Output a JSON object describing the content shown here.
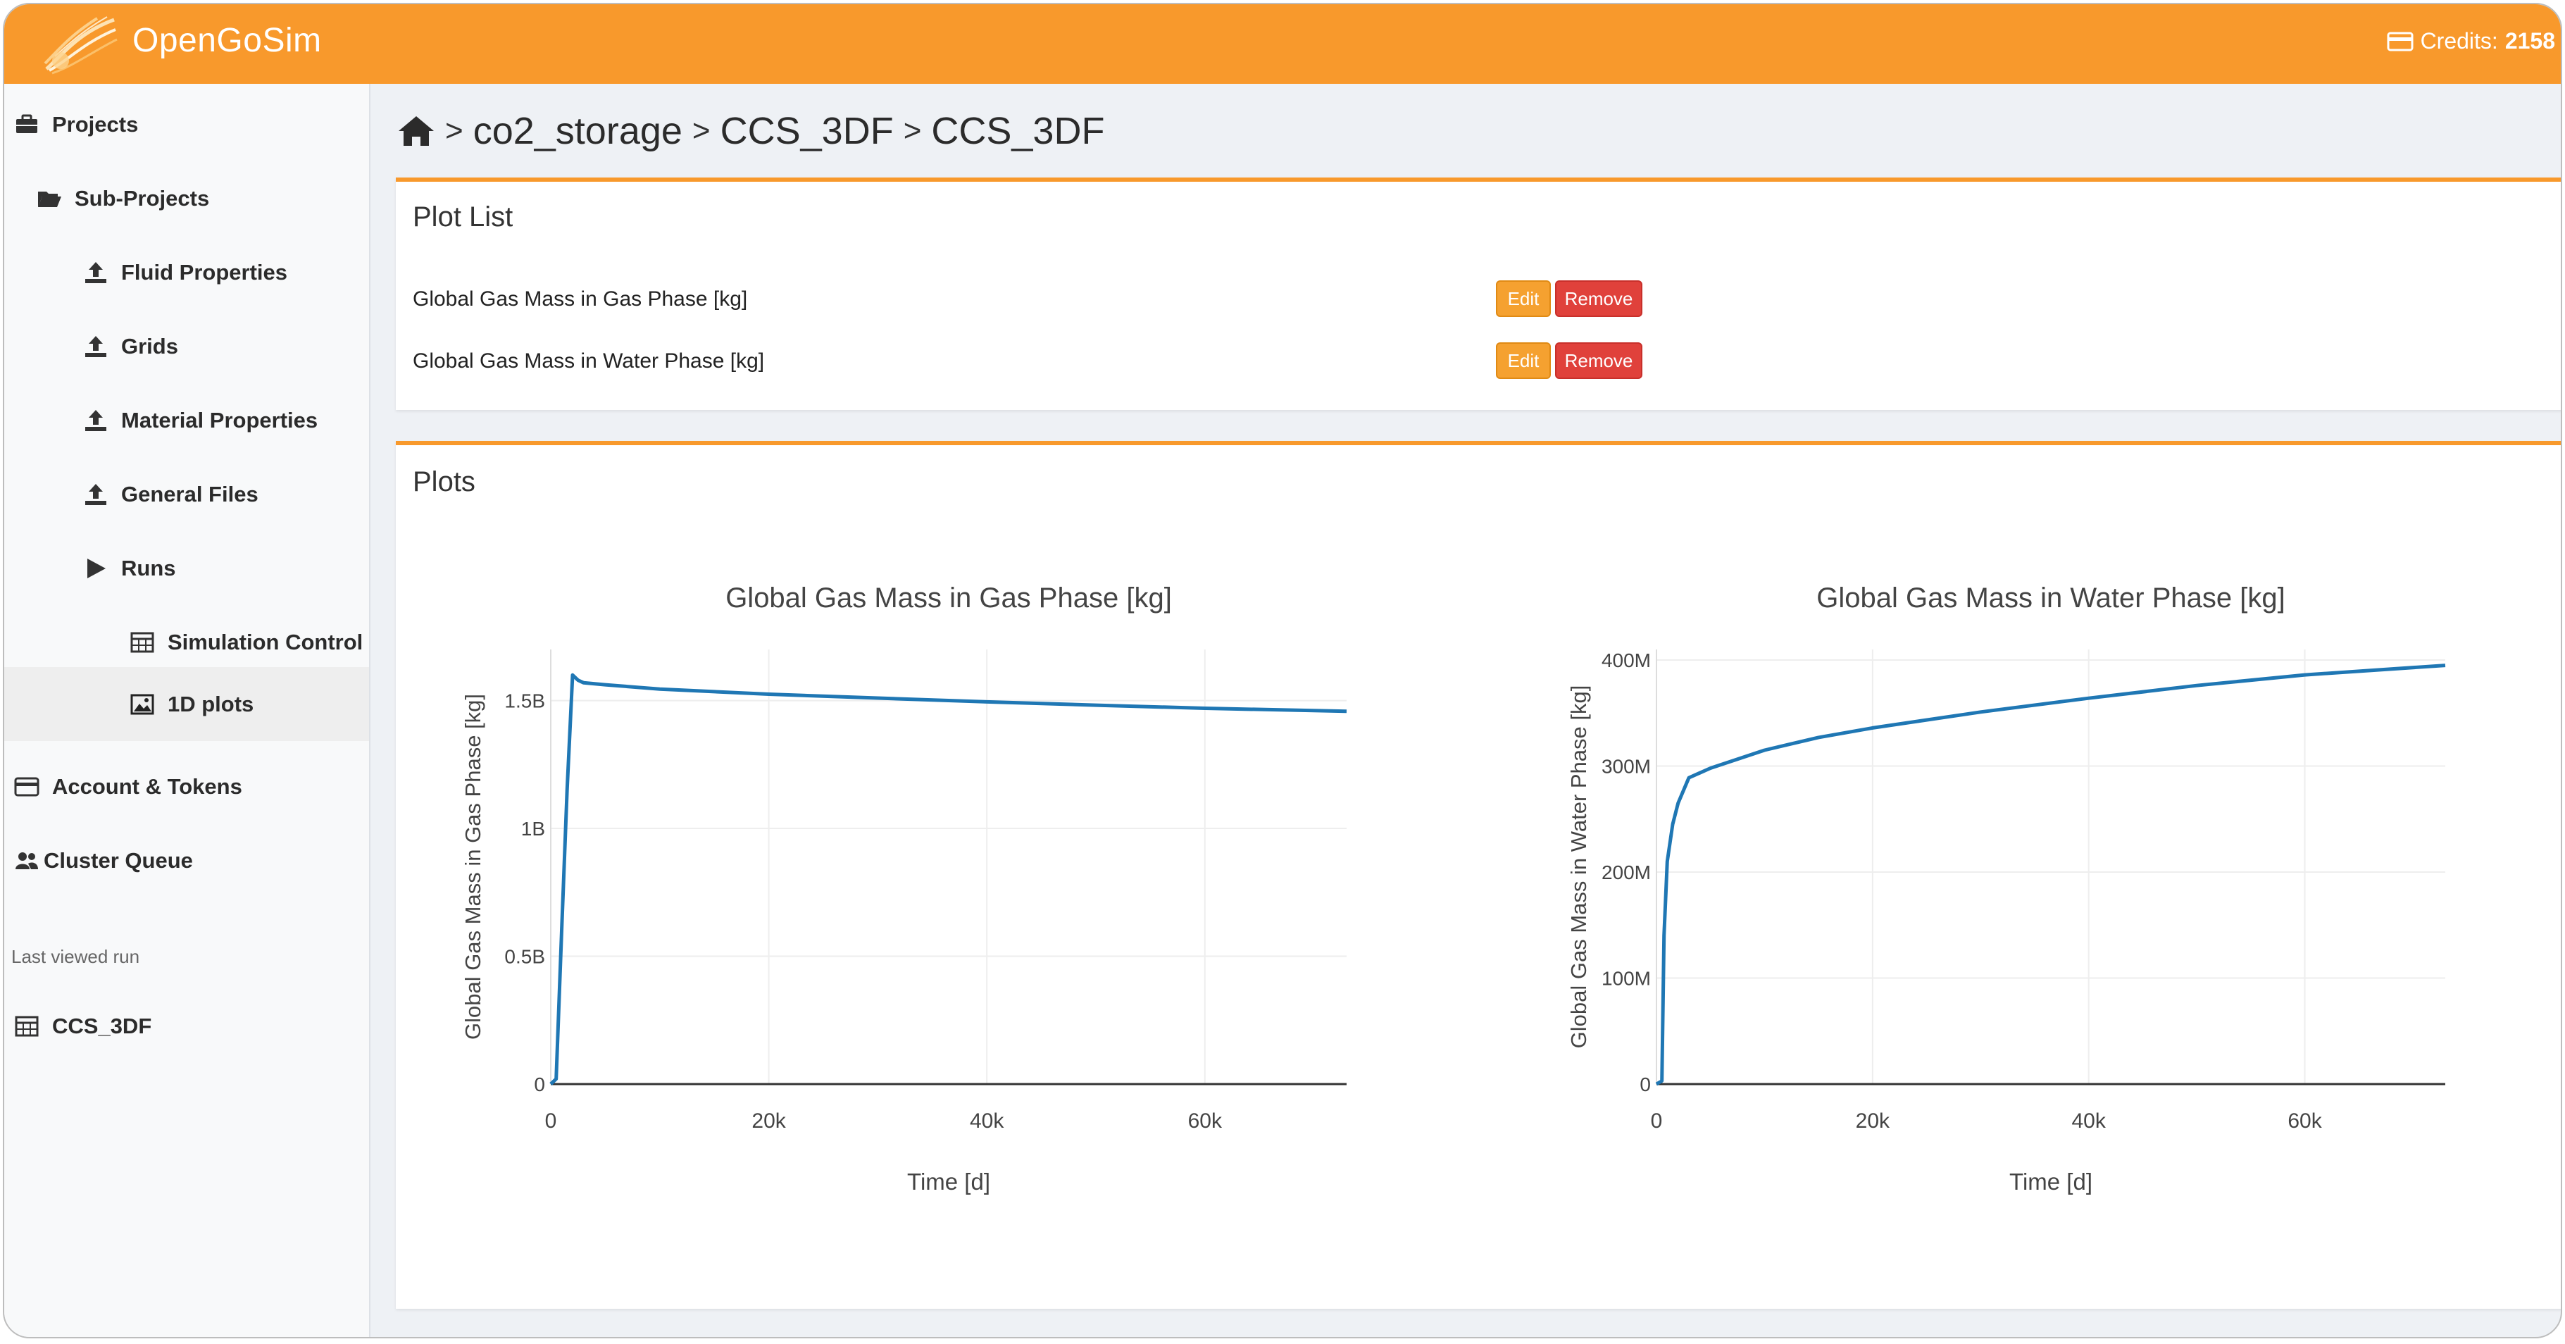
{
  "app": {
    "brand": "OpenGoSim",
    "credits_label": "Credits:",
    "credits_value": "2158"
  },
  "sidebar": {
    "items": [
      {
        "label": "Projects",
        "icon": "briefcase-icon"
      },
      {
        "label": "Sub-Projects",
        "icon": "folder-open-icon"
      },
      {
        "label": "Fluid Properties",
        "icon": "upload-icon"
      },
      {
        "label": "Grids",
        "icon": "upload-icon"
      },
      {
        "label": "Material Properties",
        "icon": "upload-icon"
      },
      {
        "label": "General Files",
        "icon": "upload-icon"
      },
      {
        "label": "Runs",
        "icon": "play-icon"
      },
      {
        "label": "Simulation Control",
        "icon": "table-icon"
      },
      {
        "label": "1D plots",
        "icon": "image-icon"
      },
      {
        "label": "Account & Tokens",
        "icon": "credit-card-icon"
      },
      {
        "label": "Cluster Queue",
        "icon": "users-icon"
      }
    ],
    "last_viewed_label": "Last viewed run",
    "last_viewed_run": "CCS_3DF"
  },
  "breadcrumb": {
    "items": [
      "co2_storage",
      "CCS_3DF",
      "CCS_3DF"
    ],
    "separator": ">"
  },
  "plot_list": {
    "title": "Plot List",
    "rows": [
      {
        "name": "Global Gas Mass in Gas Phase [kg]",
        "edit_label": "Edit",
        "remove_label": "Remove"
      },
      {
        "name": "Global Gas Mass in Water Phase [kg]",
        "edit_label": "Edit",
        "remove_label": "Remove"
      }
    ]
  },
  "plots": {
    "title": "Plots"
  },
  "colors": {
    "accent": "#f8992c",
    "line": "#1f77b4",
    "remove": "#e0413b",
    "edit": "#f5a130"
  },
  "chart_data": [
    {
      "type": "line",
      "title": "Global Gas Mass in Gas Phase [kg]",
      "xlabel": "Time [d]",
      "ylabel": "Global Gas Mass in Gas Phase [kg]",
      "xlim": [
        0,
        73000
      ],
      "ylim": [
        0,
        1700000000
      ],
      "xticks": [
        0,
        20000,
        40000,
        60000
      ],
      "xtick_labels": [
        "0",
        "20k",
        "40k",
        "60k"
      ],
      "yticks": [
        0,
        500000000,
        1000000000,
        1500000000
      ],
      "ytick_labels": [
        "0",
        "0.5B",
        "1B",
        "1.5B"
      ],
      "grid": true,
      "series": [
        {
          "x": [
            0,
            500,
            1000,
            1500,
            2000,
            2500,
            3000,
            5000,
            10000,
            20000,
            30000,
            40000,
            50000,
            60000,
            73000
          ],
          "y": [
            0,
            20000000,
            600000000,
            1150000000,
            1600000000,
            1580000000,
            1570000000,
            1562000000,
            1545000000,
            1525000000,
            1510000000,
            1495000000,
            1482000000,
            1470000000,
            1458000000
          ]
        }
      ]
    },
    {
      "type": "line",
      "title": "Global Gas Mass in Water Phase [kg]",
      "xlabel": "Time [d]",
      "ylabel": "Global Gas Mass in Water Phase [kg]",
      "xlim": [
        0,
        73000
      ],
      "ylim": [
        0,
        410000000
      ],
      "xticks": [
        0,
        20000,
        40000,
        60000
      ],
      "xtick_labels": [
        "0",
        "20k",
        "40k",
        "60k"
      ],
      "yticks": [
        0,
        100000000,
        200000000,
        300000000,
        400000000
      ],
      "ytick_labels": [
        "0",
        "100M",
        "200M",
        "300M",
        "400M"
      ],
      "grid": true,
      "series": [
        {
          "x": [
            0,
            500,
            700,
            1000,
            1500,
            2000,
            3000,
            5000,
            10000,
            15000,
            20000,
            30000,
            40000,
            50000,
            60000,
            73000
          ],
          "y": [
            0,
            3000000,
            140000000,
            210000000,
            245000000,
            265000000,
            289000000,
            298000000,
            315000000,
            327000000,
            336000000,
            351000000,
            364000000,
            376000000,
            386000000,
            395000000
          ]
        }
      ]
    }
  ]
}
